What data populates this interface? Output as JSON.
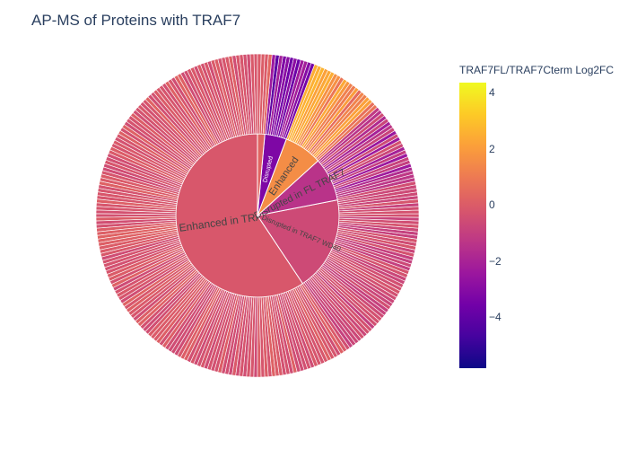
{
  "chart_data": {
    "type": "sunburst",
    "title": "AP-MS of Proteins with TRAF7",
    "colorbar": {
      "title": "TRAF7FL/TRAF7Cterm Log2FC",
      "min": -5.8,
      "max": 4.4,
      "ticks": [
        "4",
        "2",
        "0",
        "−2",
        "−4"
      ],
      "tick_values": [
        4,
        2,
        0,
        -2,
        -4
      ],
      "colorscale": [
        "#0d0887",
        "#46039f",
        "#7201a8",
        "#9c179e",
        "#bd3786",
        "#d8576b",
        "#ed7953",
        "#fb9f3a",
        "#fdca26",
        "#f0f921"
      ]
    },
    "inner_sectors": [
      {
        "label": "Enhanced in TRAF7 WD40",
        "count": 165,
        "log2fc": -0.15
      },
      {
        "label": "Disrupted in TRAF7 WD40",
        "count": 52,
        "log2fc": -0.6
      },
      {
        "label": "Disrupted in FL TRAF7",
        "count": 24,
        "log2fc": -1.4
      },
      {
        "label": "Enhanced",
        "count": 21,
        "log2fc": 1.6
      },
      {
        "label": "Disrupted",
        "count": 12,
        "log2fc": -3.2
      },
      {
        "label": "",
        "count": 4,
        "log2fc": 0.3
      }
    ],
    "start_angle_deg": 90,
    "direction": "counterclockwise"
  }
}
